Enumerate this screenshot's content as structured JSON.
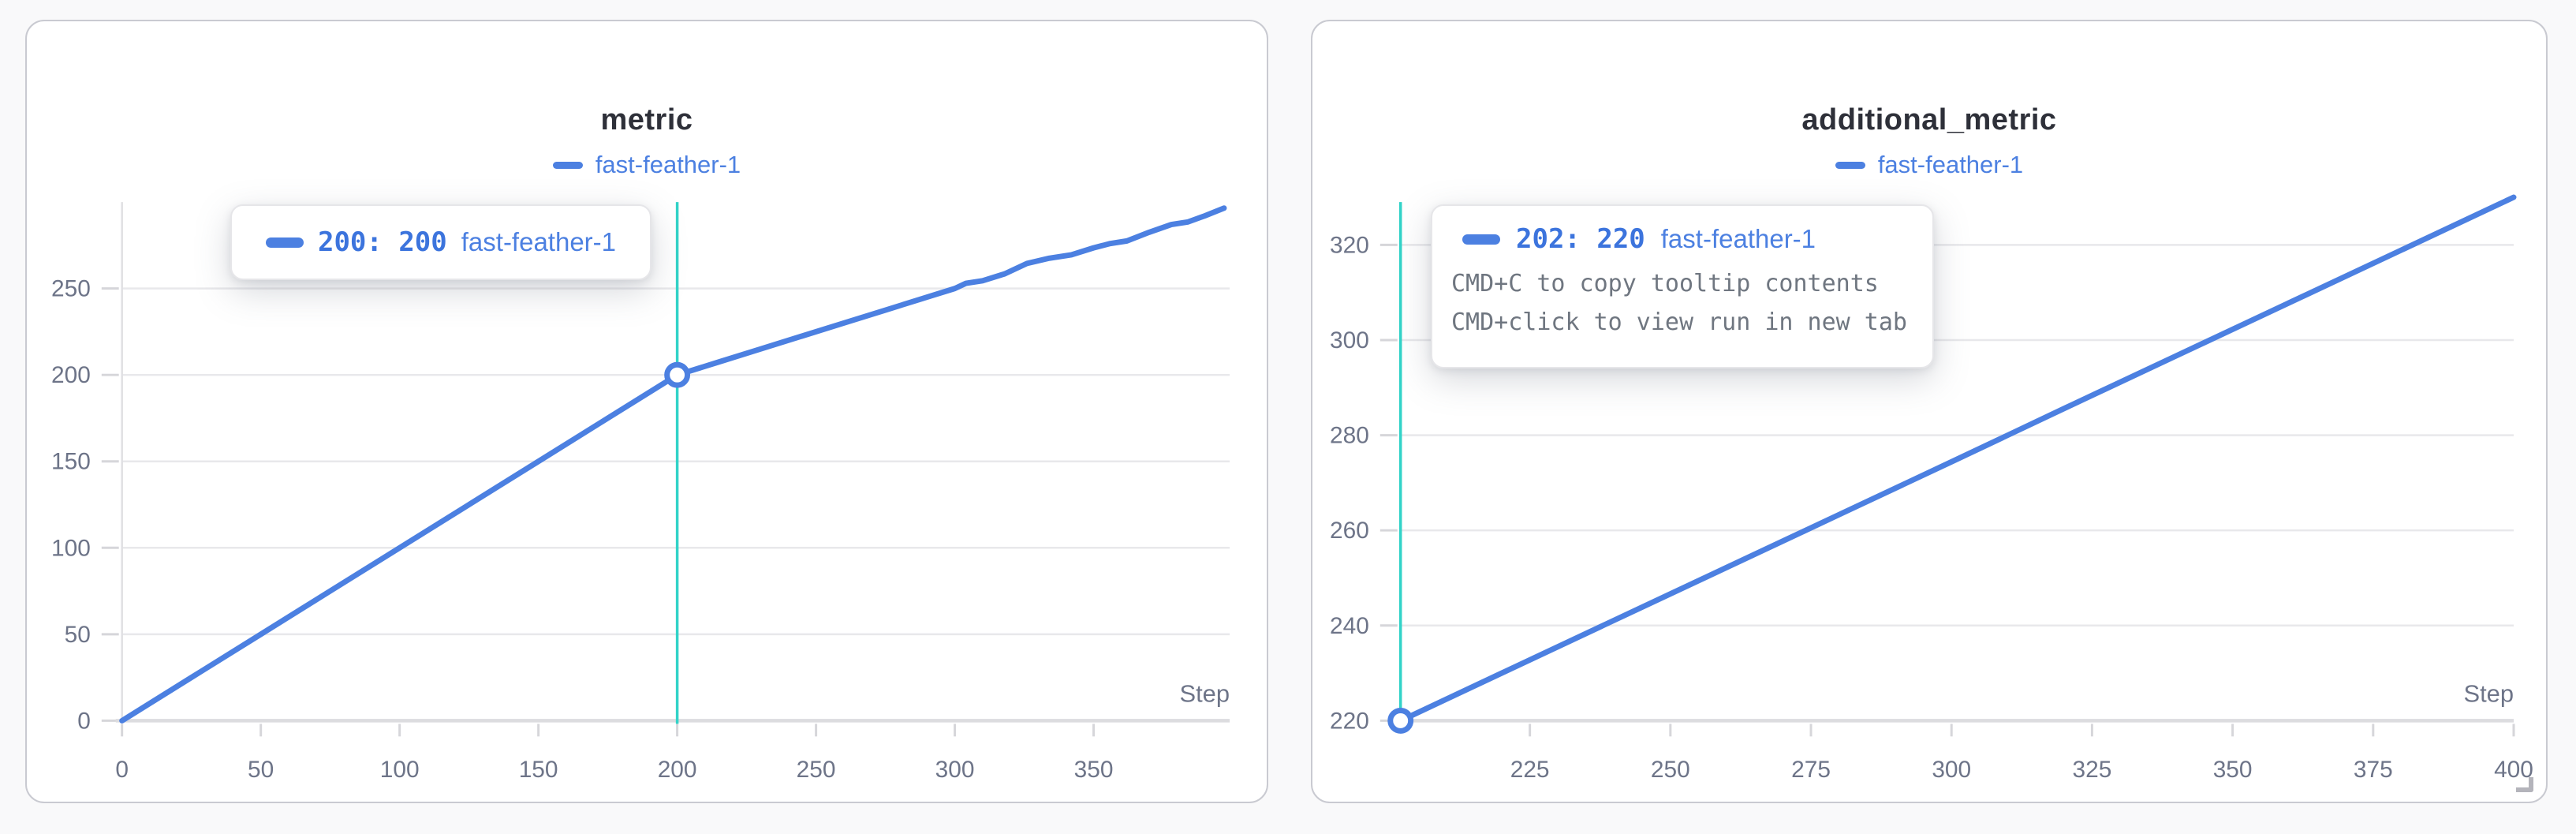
{
  "colors": {
    "run_blue": "#4c80e1",
    "tooltip_value_blue": "#3c74dd",
    "crosshair_teal": "#32d3c8",
    "grid_grey": "#e8e8eb",
    "axis_grey": "#dcdcdf",
    "tick_text_grey": "#6d7488",
    "panel_border": "#c9cad1"
  },
  "panels": [
    {
      "title": "metric",
      "legend": {
        "run_name": "fast-feather-1"
      },
      "tooltip": {
        "value_text": "200: 200",
        "run_name": "fast-feather-1"
      }
    },
    {
      "title": "additional_metric",
      "legend": {
        "run_name": "fast-feather-1"
      },
      "tooltip": {
        "value_text": "202: 220",
        "run_name": "fast-feather-1",
        "hint_copy": "CMD+C to copy tooltip contents",
        "hint_open": "CMD+click to view run in new tab"
      }
    }
  ],
  "chart_data": [
    {
      "type": "line",
      "title": "metric",
      "xlabel": "Step",
      "legend_position": "top-center",
      "grid": "horizontal",
      "xlim": [
        0,
        399
      ],
      "ylim": [
        0,
        300
      ],
      "x_ticks": [
        0,
        50,
        100,
        150,
        200,
        250,
        300,
        350
      ],
      "y_ticks": [
        0,
        50,
        100,
        150,
        200,
        250
      ],
      "series": [
        {
          "name": "fast-feather-1",
          "points": [
            [
              0,
              0
            ],
            [
              25,
              25
            ],
            [
              50,
              50
            ],
            [
              75,
              75
            ],
            [
              100,
              100
            ],
            [
              125,
              125
            ],
            [
              150,
              150
            ],
            [
              175,
              175
            ],
            [
              200,
              200
            ],
            [
              215,
              207.5
            ],
            [
              230,
              215
            ],
            [
              245,
              222.5
            ],
            [
              260,
              230
            ],
            [
              275,
              237.5
            ],
            [
              290,
              245
            ],
            [
              300,
              250
            ],
            [
              304,
              253
            ],
            [
              310,
              254.5
            ],
            [
              318,
              258.5
            ],
            [
              326,
              264.5
            ],
            [
              334,
              267.5
            ],
            [
              342,
              269.5
            ],
            [
              350,
              273.5
            ],
            [
              356,
              276
            ],
            [
              362,
              277.5
            ],
            [
              370,
              282.5
            ],
            [
              378,
              287
            ],
            [
              384,
              288.5
            ],
            [
              390,
              292
            ],
            [
              397,
              296.5
            ]
          ]
        }
      ],
      "crosshair": {
        "x": 200,
        "point": [
          200,
          200
        ],
        "label": "200: 200 fast-feather-1"
      }
    },
    {
      "type": "line",
      "title": "additional_metric",
      "xlabel": "Step",
      "legend_position": "top-center",
      "grid": "horizontal",
      "xlim": [
        202,
        400
      ],
      "ylim": [
        220,
        329
      ],
      "x_ticks": [
        225,
        250,
        275,
        300,
        325,
        350,
        375,
        400
      ],
      "y_ticks": [
        220,
        240,
        260,
        280,
        300,
        320
      ],
      "series": [
        {
          "name": "fast-feather-1",
          "points": [
            [
              202,
              220
            ],
            [
              220,
              230
            ],
            [
              240,
              241.1
            ],
            [
              260,
              252.2
            ],
            [
              280,
              263.3
            ],
            [
              300,
              274.4
            ],
            [
              320,
              285.6
            ],
            [
              340,
              296.7
            ],
            [
              360,
              307.8
            ],
            [
              380,
              318.9
            ],
            [
              400,
              330
            ]
          ]
        }
      ],
      "crosshair": {
        "x": 202,
        "point": [
          202,
          220
        ],
        "label": "202: 220 fast-feather-1"
      }
    }
  ]
}
